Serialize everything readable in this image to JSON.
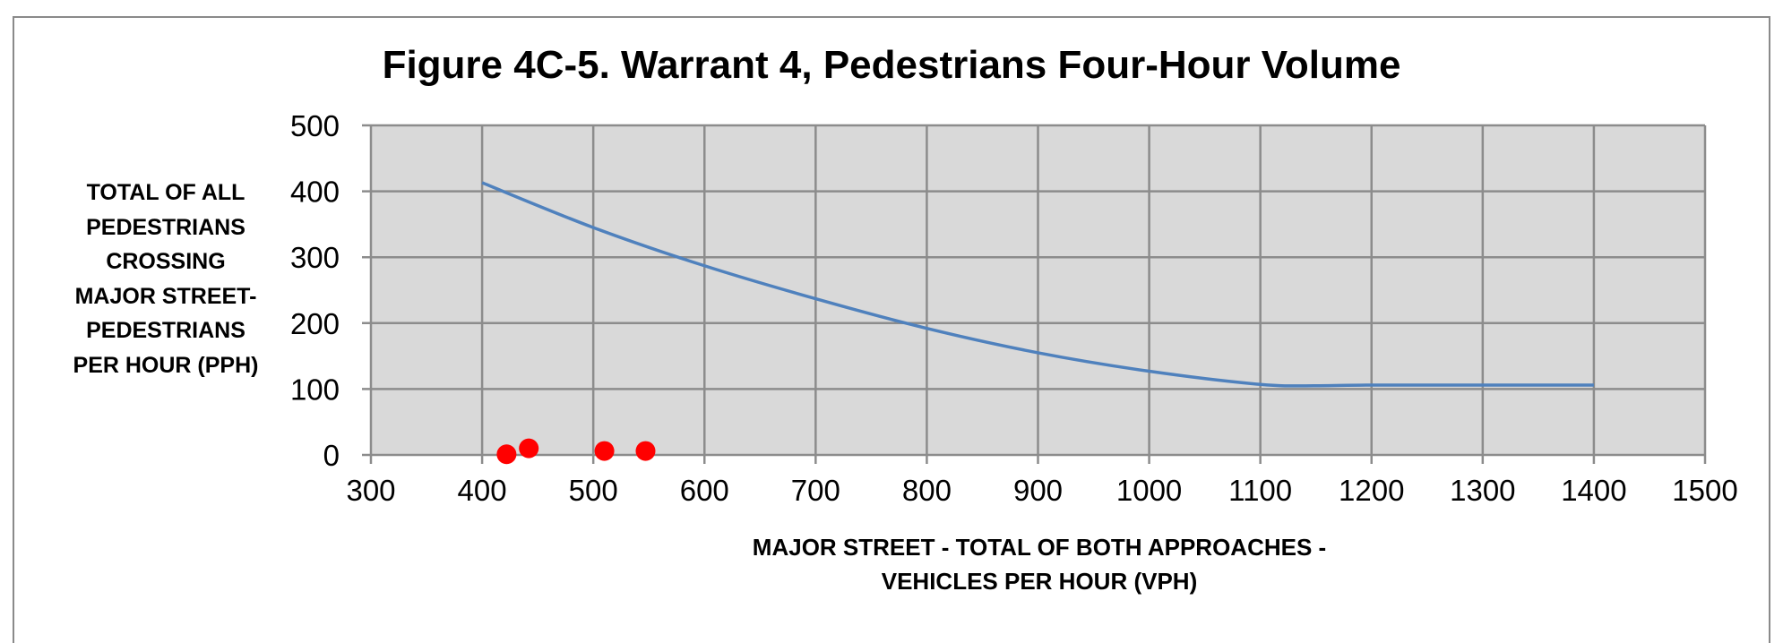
{
  "chart_data": {
    "type": "line",
    "title": "Figure 4C-5. Warrant 4, Pedestrians Four-Hour Volume",
    "ylabel_lines": [
      "TOTAL OF ALL",
      "PEDESTRIANS",
      "CROSSING",
      "MAJOR STREET-",
      "PEDESTRIANS",
      "PER HOUR (PPH)"
    ],
    "xlabel_lines": [
      "MAJOR STREET - TOTAL OF BOTH APPROACHES -",
      "VEHICLES PER HOUR (VPH)"
    ],
    "xlim": [
      300,
      1500
    ],
    "ylim": [
      0,
      500
    ],
    "x_ticks": [
      "300",
      "400",
      "500",
      "600",
      "700",
      "800",
      "900",
      "1000",
      "1100",
      "1200",
      "1300",
      "1400",
      "1500"
    ],
    "y_ticks": [
      "0",
      "100",
      "200",
      "300",
      "400",
      "500"
    ],
    "grid": true,
    "plot_background": "#d9d9d9",
    "grid_color": "#8c8c8c",
    "series": [
      {
        "kind": "line",
        "color": "#4f81bd",
        "x": [
          400,
          500,
          600,
          700,
          800,
          900,
          1000,
          1100,
          1150,
          1200,
          1300,
          1400
        ],
        "y": [
          413,
          345,
          287,
          237,
          192,
          155,
          127,
          107,
          105,
          106,
          106,
          106
        ]
      },
      {
        "kind": "scatter",
        "color": "#ff0000",
        "x": [
          422,
          442,
          510,
          547
        ],
        "y": [
          1,
          10,
          6,
          6
        ]
      }
    ]
  }
}
